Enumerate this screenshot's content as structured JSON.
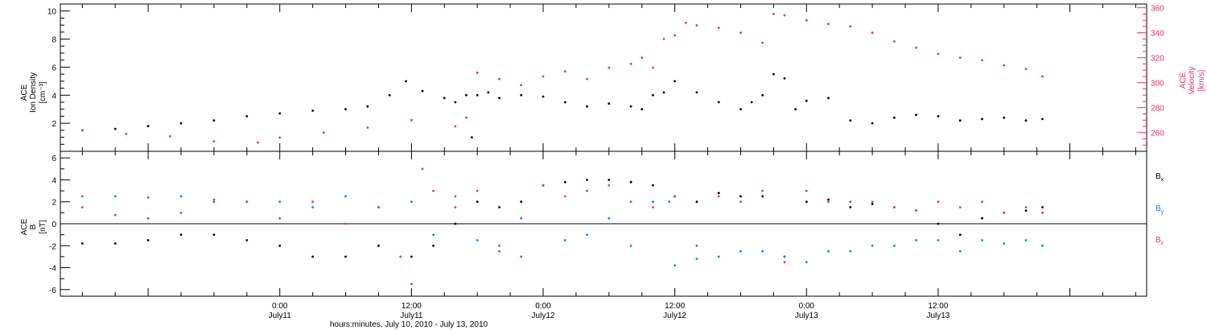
{
  "chart_data": [
    {
      "type": "scatter",
      "panel": "top",
      "ylabel_left": [
        "ACE",
        "Ion Density",
        "[cm⁻³]"
      ],
      "ylabel_right": [
        "ACE",
        "Velocity",
        "[km/s]"
      ],
      "ylim_left": [
        0,
        10.5
      ],
      "ylim_right": [
        245,
        363
      ],
      "yticks_left": [
        2,
        4,
        6,
        8,
        10
      ],
      "yticks_right": [
        260,
        280,
        300,
        320,
        340,
        360
      ],
      "colors": {
        "density": "#000000",
        "velocity": "#e8315f"
      },
      "series": [
        {
          "name": "Ion Density",
          "axis": "left",
          "x": [
            -18,
            -15,
            -12,
            -9,
            -6,
            -3,
            0,
            3,
            6,
            8,
            10,
            11.5,
            13,
            15,
            16,
            17,
            17.5,
            18,
            19,
            20,
            22,
            24,
            26,
            28,
            30,
            32,
            33,
            34,
            35,
            36,
            38,
            40,
            42,
            43,
            44,
            45,
            46,
            47,
            48,
            50,
            52,
            54,
            56,
            58,
            60,
            62,
            64,
            66,
            68,
            69.5
          ],
          "y": [
            1.5,
            1.6,
            1.8,
            2.0,
            2.2,
            2.5,
            2.7,
            2.9,
            3.0,
            3.2,
            4.0,
            5.0,
            4.3,
            3.8,
            3.5,
            4.0,
            1.0,
            4.0,
            4.2,
            3.8,
            4.0,
            3.9,
            3.5,
            3.2,
            3.4,
            3.2,
            3.0,
            4.0,
            4.2,
            5.0,
            4.2,
            3.5,
            3.0,
            3.5,
            4.0,
            5.5,
            5.2,
            3.0,
            3.6,
            3.8,
            2.2,
            2.0,
            2.4,
            2.6,
            2.5,
            2.2,
            2.3,
            2.4,
            2.2,
            2.3
          ]
        },
        {
          "name": "Velocity",
          "axis": "right",
          "x": [
            -18,
            -14,
            -10,
            -6,
            -2,
            0,
            4,
            8,
            12,
            16,
            17,
            18,
            20,
            22,
            24,
            26,
            28,
            30,
            32,
            33,
            34,
            35,
            36,
            37,
            38,
            40,
            42,
            44,
            45,
            46,
            48,
            50,
            52,
            54,
            56,
            58,
            60,
            62,
            64,
            66,
            68,
            69.5
          ],
          "y": [
            262,
            259,
            257,
            253,
            252,
            256,
            260,
            264,
            270,
            265,
            272,
            308,
            303,
            298,
            305,
            309,
            303,
            312,
            315,
            320,
            312,
            335,
            338,
            348,
            346,
            344,
            340,
            332,
            355,
            354,
            350,
            347,
            345,
            340,
            333,
            328,
            323,
            320,
            318,
            314,
            311,
            305
          ]
        }
      ]
    },
    {
      "type": "scatter",
      "panel": "bottom",
      "ylabel": [
        "ACE",
        "B",
        "[nT]"
      ],
      "ylim": [
        -6.6,
        6.6
      ],
      "yticks": [
        -6,
        -4,
        -2,
        0,
        2,
        4,
        6
      ],
      "xlabel": "hours:minutes, July 10, 2010 - July 13, 2010",
      "xticks": [
        {
          "x": 0,
          "time": "0:00",
          "day": "July11"
        },
        {
          "x": 12,
          "time": "12:00",
          "day": "July11"
        },
        {
          "x": 24,
          "time": "0:00",
          "day": "July12"
        },
        {
          "x": 36,
          "time": "12:00",
          "day": "July12"
        },
        {
          "x": 48,
          "time": "0:00",
          "day": "July13"
        },
        {
          "x": 60,
          "time": "12:00",
          "day": "July13"
        }
      ],
      "xlim": [
        -20,
        79
      ],
      "legend": [
        {
          "label": "B",
          "sub": "x",
          "color": "#000000"
        },
        {
          "label": "B",
          "sub": "y",
          "color": "#1a7fe0"
        },
        {
          "label": "B",
          "sub": "z",
          "color": "#e8315f"
        }
      ],
      "series": [
        {
          "name": "Bx",
          "x": [
            -18,
            -15,
            -12,
            -9,
            -6,
            -3,
            0,
            3,
            6,
            9,
            12,
            14,
            16,
            18,
            20,
            22,
            24,
            26,
            28,
            30,
            32,
            34,
            36,
            38,
            40,
            42,
            44,
            46,
            48,
            50,
            52,
            54,
            56,
            58,
            60,
            62,
            64,
            66,
            68,
            69.5
          ],
          "y": [
            -1.8,
            -1.8,
            -1.5,
            -1.0,
            -1.0,
            -1.5,
            -2.0,
            -3.0,
            -3.0,
            -2.0,
            -3.0,
            -2.0,
            0.0,
            2.0,
            1.5,
            2.0,
            3.5,
            3.8,
            4.0,
            4.0,
            3.8,
            3.5,
            2.5,
            2.0,
            2.8,
            2.5,
            2.5,
            -3.0,
            2.0,
            2.2,
            1.5,
            1.8,
            1.5,
            1.2,
            0.0,
            -1.0,
            0.5,
            1.0,
            1.2,
            1.5
          ]
        },
        {
          "name": "By",
          "x": [
            -18,
            -15,
            -12,
            -9,
            -6,
            -3,
            0,
            3,
            6,
            9,
            12,
            14,
            16,
            18,
            20,
            22,
            24,
            26,
            28,
            30,
            32,
            34,
            35.5,
            36,
            38,
            40,
            42,
            44,
            46,
            48,
            50,
            52,
            54,
            56,
            58,
            60,
            62,
            64,
            66,
            68,
            69.5
          ],
          "y": [
            2.5,
            2.5,
            2.4,
            2.5,
            2.2,
            2.0,
            2.0,
            1.5,
            2.5,
            1.5,
            2.0,
            -1.0,
            2.5,
            -1.5,
            -2.0,
            0.5,
            3.5,
            -1.5,
            -1.0,
            0.5,
            -2.0,
            2.0,
            2.0,
            -3.8,
            -3.2,
            -3.0,
            -2.5,
            -2.5,
            -3.0,
            -3.5,
            -2.5,
            -2.5,
            -2.0,
            -2.0,
            -1.5,
            -1.5,
            -2.5,
            -1.5,
            -1.8,
            -1.5,
            -2.0
          ]
        },
        {
          "name": "Bz",
          "x": [
            -18,
            -15,
            -12,
            -9,
            -6,
            -3,
            0,
            3,
            6,
            9,
            11,
            12,
            13,
            14,
            16,
            18,
            20,
            22,
            24,
            26,
            28,
            30,
            32,
            34,
            36,
            38,
            40,
            42,
            44,
            46,
            48,
            50,
            52,
            54,
            56,
            58,
            60,
            62,
            64,
            66,
            68,
            69.5
          ],
          "y": [
            1.5,
            0.8,
            0.5,
            1.0,
            2.0,
            2.0,
            0.5,
            2.0,
            0.0,
            1.5,
            -3.0,
            -5.5,
            5.0,
            3.0,
            1.5,
            3.0,
            -2.5,
            -3.0,
            3.5,
            2.5,
            3.0,
            3.5,
            2.0,
            1.5,
            2.5,
            -2.0,
            2.5,
            2.0,
            3.0,
            -3.5,
            3.0,
            2.0,
            2.0,
            2.0,
            1.5,
            1.2,
            2.0,
            1.5,
            2.0,
            1.0,
            1.5,
            1.0
          ]
        }
      ]
    }
  ]
}
